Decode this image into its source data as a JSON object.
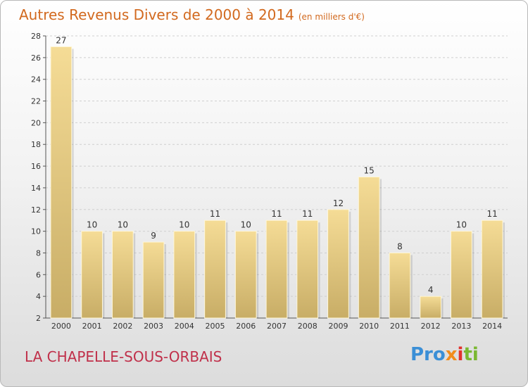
{
  "header": {
    "title": "Autres Revenus Divers de 2000 à 2014",
    "unit": "(en milliers d'€)"
  },
  "footer": {
    "place": "LA CHAPELLE-SOUS-ORBAIS",
    "logo_parts": [
      "Pro",
      "x",
      "i",
      "ti"
    ]
  },
  "colors": {
    "title": "#d2691e",
    "place": "#c0304a",
    "bar_top": "#f5dc96",
    "bar_bottom": "#c8ad66",
    "grid": "#cfcfcf"
  },
  "chart_data": {
    "type": "bar",
    "title": "Autres Revenus Divers de 2000 à 2014",
    "subtitle": "(en milliers d'€)",
    "xlabel": "",
    "ylabel": "",
    "categories": [
      "2000",
      "2001",
      "2002",
      "2003",
      "2004",
      "2005",
      "2006",
      "2007",
      "2008",
      "2009",
      "2010",
      "2011",
      "2012",
      "2013",
      "2014"
    ],
    "values": [
      27,
      10,
      10,
      9,
      10,
      11,
      10,
      11,
      11,
      12,
      15,
      8,
      4,
      10,
      11
    ],
    "ylim": [
      2,
      28
    ],
    "yticks": [
      2,
      4,
      6,
      8,
      10,
      12,
      14,
      16,
      18,
      20,
      22,
      24,
      26,
      28
    ],
    "grid": true,
    "data_labels": true
  }
}
